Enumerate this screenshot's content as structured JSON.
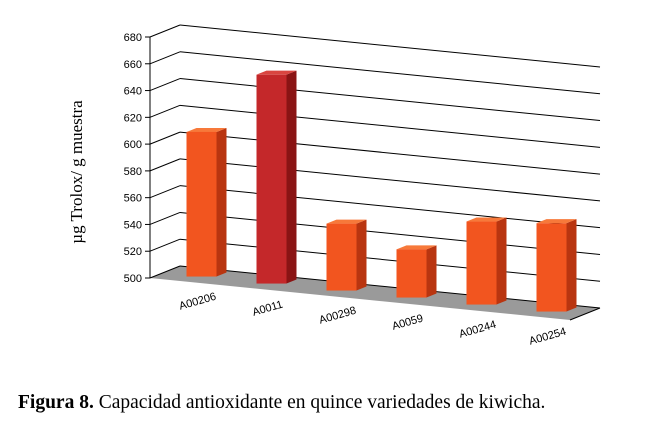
{
  "chart_data": {
    "type": "bar",
    "style": "3d",
    "categories": [
      "A00206",
      "A0011",
      "A00298",
      "A0059",
      "A00244",
      "A00254"
    ],
    "values": [
      608,
      656,
      550,
      536,
      562,
      566
    ],
    "highlight_index": 1,
    "ylabel": "µg Trolox/ g muestra",
    "ylim": [
      500,
      680
    ],
    "yticks": [
      500,
      520,
      540,
      560,
      580,
      600,
      620,
      640,
      660,
      680
    ],
    "grid": true,
    "legend": "none",
    "colors": {
      "bar_front": "#f2551f",
      "bar_top": "#f7793a",
      "bar_side": "#b93510",
      "highlight_front": "#c4282a",
      "highlight_top": "#d94540",
      "highlight_side": "#8a1414",
      "floor": "#9a9a9a"
    }
  },
  "caption": {
    "label": "Figura 8.",
    "text": " Capacidad antioxidante en quince variedades de kiwicha."
  }
}
